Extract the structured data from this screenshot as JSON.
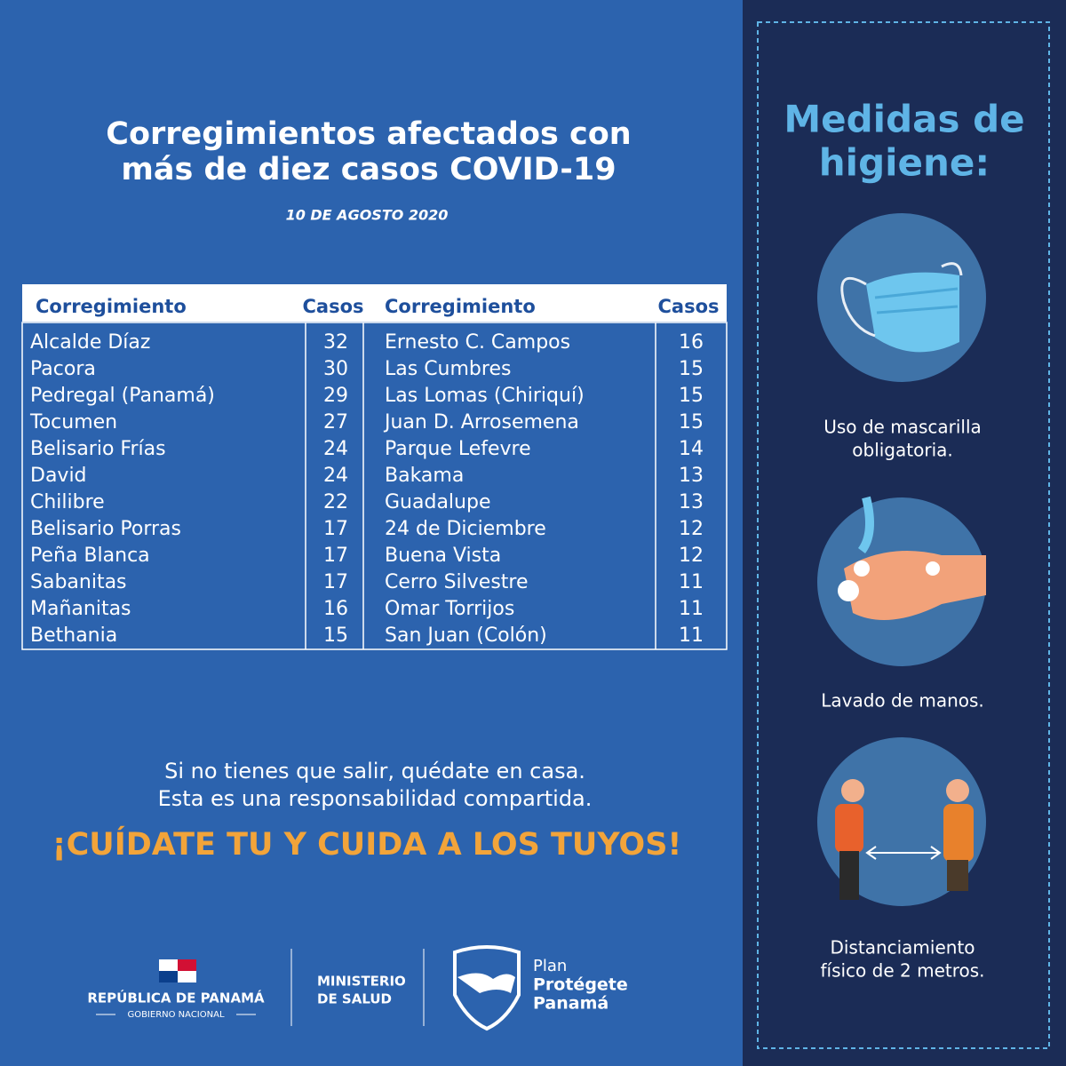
{
  "header": {
    "title_lines": [
      "Corregimientos afectados con",
      "más de diez casos COVID-19"
    ],
    "date": "10  DE  AGOSTO  2020"
  },
  "table": {
    "columns": [
      "Corregimiento",
      "Casos",
      "Corregimiento",
      "Casos"
    ],
    "rows": [
      [
        "Alcalde Díaz",
        32,
        "Ernesto C. Campos",
        16
      ],
      [
        "Pacora",
        30,
        "Las Cumbres",
        15
      ],
      [
        "Pedregal (Panamá)",
        29,
        "Las Lomas (Chiriquí)",
        15
      ],
      [
        "Tocumen",
        27,
        "Juan D. Arrosemena",
        15
      ],
      [
        "Belisario Frías",
        24,
        "Parque Lefevre",
        14
      ],
      [
        "David",
        24,
        "Bakama",
        13
      ],
      [
        "Chilibre",
        22,
        "Guadalupe",
        13
      ],
      [
        "Belisario Porras",
        17,
        "24 de Diciembre",
        12
      ],
      [
        "Peña Blanca",
        17,
        "Buena Vista",
        12
      ],
      [
        "Sabanitas",
        17,
        "Cerro Silvestre",
        11
      ],
      [
        "Mañanitas",
        16,
        "Omar Torrijos",
        11
      ],
      [
        "Bethania",
        15,
        "San Juan (Colón)",
        11
      ]
    ]
  },
  "message": {
    "lines": [
      "Si no tienes que salir, quédate en casa.",
      "Esta es una responsabilidad compartida."
    ],
    "slogan": "¡CUÍDATE TU Y CUIDA A LOS TUYOS!"
  },
  "footer": {
    "republic": "REPÚBLICA DE PANAMÁ",
    "government": "GOBIERNO NACIONAL",
    "ministry_lines": [
      "MINISTERIO",
      "DE SALUD"
    ],
    "plan_lines": [
      "Plan",
      "Protégete",
      "Panamá"
    ]
  },
  "sidebar": {
    "title_lines": [
      "Medidas de",
      "higiene:"
    ],
    "items": [
      {
        "caption_lines": [
          "Uso de mascarilla",
          "obligatoria."
        ]
      },
      {
        "caption_lines": [
          "Lavado de manos."
        ]
      },
      {
        "caption_lines": [
          "Distanciamiento",
          "físico de 2 metros."
        ]
      }
    ]
  }
}
